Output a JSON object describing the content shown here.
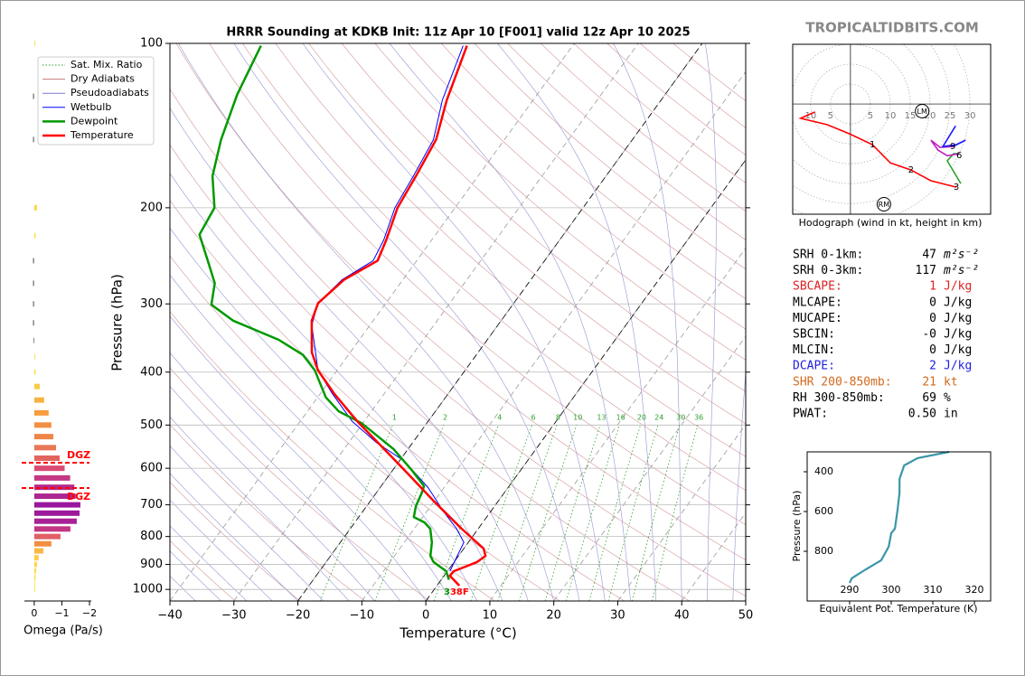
{
  "watermark": "TROPICALTIDBITS.COM",
  "chart_data": [
    {
      "type": "skewt",
      "title": "HRRR Sounding at KDKB Init: 11z Apr 10 [F001] valid 12z Apr 10 2025",
      "xlabel": "Temperature (°C)",
      "ylabel": "Pressure (hPa)",
      "xlim": [
        -40,
        50
      ],
      "ylim": [
        1050,
        100
      ],
      "log_y": true,
      "grid": true,
      "xticks": [
        {
          "value": -40,
          "label": "−40"
        },
        {
          "value": -30,
          "label": "−30"
        },
        {
          "value": -20,
          "label": "−20"
        },
        {
          "value": -10,
          "label": "−10"
        },
        0,
        10,
        20,
        30,
        40,
        50
      ],
      "yticks": [
        100,
        200,
        300,
        400,
        500,
        600,
        700,
        800,
        900,
        1000
      ],
      "highlight_isotherms": [
        0,
        -20
      ],
      "mixing_ratios": [
        1,
        2,
        4,
        6,
        8,
        10,
        13,
        16,
        20,
        24,
        30,
        36
      ],
      "background_lines": [
        {
          "name": "Sat. Mix. Ratio",
          "color": "#2ca02c"
        },
        {
          "name": "Dry Adiabats",
          "color": "#c97a7a"
        },
        {
          "name": "Pseudoadiabats",
          "color": "#7a7ac9"
        }
      ],
      "series": [
        {
          "name": "Wetbulb",
          "color": "#0000ff",
          "pressure": [
            926,
            868,
            820,
            774,
            717,
            652,
            609,
            582,
            539,
            492,
            439,
            397,
            328,
            299,
            271,
            250,
            229,
            200,
            175,
            150,
            127,
            101
          ],
          "values": [
            0.4,
            -0.2,
            -0.7,
            -3.4,
            -7.6,
            -12.4,
            -16.5,
            -19.2,
            -25.6,
            -31.9,
            -38.0,
            -43.0,
            -49.1,
            -50.6,
            -49.5,
            -46.8,
            -47.5,
            -49.4,
            -50.1,
            -51.1,
            -54.2,
            -57.1
          ]
        },
        {
          "name": "Dewpoint",
          "color": "#009900",
          "pressure": [
            960,
            926,
            891,
            868,
            820,
            774,
            754,
            737,
            704,
            665,
            647,
            604,
            553,
            496,
            472,
            445,
            397,
            372,
            349,
            322,
            301,
            275,
            251,
            224,
            200,
            175,
            150,
            124,
            101
          ],
          "values": [
            1.2,
            -0.2,
            -3.2,
            -4.4,
            -5.7,
            -7.5,
            -9.1,
            -11.4,
            -12.3,
            -12.9,
            -13.3,
            -17.1,
            -22.3,
            -30.2,
            -35.1,
            -38.7,
            -43.5,
            -47.1,
            -52.6,
            -61.9,
            -67.1,
            -69.0,
            -72.5,
            -76.9,
            -77.6,
            -81.5,
            -84.3,
            -86.9,
            -88.7
          ]
        },
        {
          "name": "Temperature",
          "color": "#ff0000",
          "pressure": [
            984,
            944,
            926,
            891,
            868,
            842,
            774,
            690,
            616,
            543,
            492,
            439,
            397,
            368,
            322,
            299,
            271,
            250,
            229,
            200,
            175,
            150,
            127,
            101
          ],
          "values": [
            3.5,
            0.9,
            1.0,
            3.6,
            4.2,
            3.1,
            -2.6,
            -10.0,
            -17.0,
            -24.9,
            -31.1,
            -37.7,
            -43.0,
            -46.0,
            -49.6,
            -50.6,
            -49.2,
            -46.1,
            -47.1,
            -49.0,
            -49.7,
            -50.7,
            -53.5,
            -56.5
          ]
        }
      ],
      "surface_labels": [
        {
          "text": "3",
          "color": "#009900"
        },
        {
          "text": "38F",
          "color": "#ff0000"
        }
      ]
    },
    {
      "type": "hbar",
      "xlabel": "Omega (Pa/s)",
      "xlim": [
        0.16,
        -2
      ],
      "xticks": [
        0,
        {
          "value": -1,
          "label": "−1"
        },
        {
          "value": -2,
          "label": "−2"
        }
      ],
      "pressure": [
        100,
        125,
        150,
        200,
        225,
        250,
        275,
        300,
        325,
        350,
        375,
        400,
        425,
        450,
        475,
        500,
        525,
        550,
        575,
        600,
        625,
        650,
        675,
        700,
        725,
        750,
        775,
        800,
        825,
        850,
        875,
        900,
        925,
        950,
        975,
        1000
      ],
      "values": [
        -0.03,
        0.05,
        0.05,
        -0.1,
        -0.05,
        0.05,
        0.05,
        0.05,
        0.05,
        0.03,
        -0.03,
        -0.05,
        -0.2,
        -0.36,
        -0.52,
        -0.62,
        -0.69,
        -0.79,
        -0.92,
        -1.1,
        -1.3,
        -1.45,
        -1.5,
        -1.67,
        -1.64,
        -1.54,
        -1.31,
        -0.95,
        -0.62,
        -0.33,
        -0.16,
        -0.1,
        -0.07,
        -0.05,
        -0.03,
        -0.02
      ],
      "dgz": [
        {
          "pressure": 586,
          "label": "DGZ"
        },
        {
          "pressure": 652,
          "label": "DGZ"
        }
      ]
    },
    {
      "type": "hodograph",
      "caption": "Hodograph (wind in kt, height in km)",
      "xlim": [
        -14.5,
        35.2
      ],
      "ylim": [
        -27.7,
        15
      ],
      "xticks": [
        {
          "value": -10,
          "label": "10"
        },
        {
          "value": -5,
          "label": "5"
        },
        5,
        10,
        15,
        20,
        25,
        30
      ],
      "segments": [
        {
          "color": "#ff0000",
          "u": [
            -8.9,
            -12.5,
            -5.9,
            -0.2,
            5.5,
            10.0,
            15.2,
            20.2,
            26.6
          ],
          "v": [
            -2.0,
            -3.6,
            -5.2,
            -7.5,
            -10.2,
            -14.8,
            -16.6,
            -19.3,
            -20.9
          ]
        },
        {
          "color": "#2ca02c",
          "u": [
            27.7,
            25.7,
            24.3,
            25.9,
            27.3
          ],
          "v": [
            -20.0,
            -16.6,
            -14.3,
            -12.5,
            -12.5
          ]
        },
        {
          "color": "#c020c0",
          "u": [
            27.3,
            24.3,
            22.0,
            20.2,
            22.5,
            25.7
          ],
          "v": [
            -12.5,
            -13.0,
            -11.6,
            -9.1,
            -10.9,
            -10.7
          ]
        },
        {
          "color": "#1a1aff",
          "u": [
            25.7,
            28.9,
            26.6,
            23.2,
            26.4
          ],
          "v": [
            -10.7,
            -9.1,
            -10.2,
            -10.7,
            -5.5
          ]
        }
      ],
      "height_labels": [
        {
          "km": 1,
          "u": 5.5,
          "v": -10.2
        },
        {
          "km": 2,
          "u": 15.2,
          "v": -16.6
        },
        {
          "km": 3,
          "u": 26.6,
          "v": -20.9
        },
        {
          "km": 6,
          "u": 27.3,
          "v": -12.9
        },
        {
          "km": 9,
          "u": 25.7,
          "v": -10.7
        }
      ],
      "motions": [
        {
          "label": "LM",
          "u": 18.0,
          "v": -1.8
        },
        {
          "label": "RM",
          "u": 8.4,
          "v": -25.2
        }
      ]
    },
    {
      "type": "line",
      "xlabel": "Equivalent Pot. Temperature (K)",
      "ylabel": "Pressure (hPa)",
      "xlim": [
        279.8,
        323.9
      ],
      "ylim": [
        1050,
        300
      ],
      "xticks": [
        290,
        300,
        310,
        320
      ],
      "yticks": [
        400,
        600,
        800
      ],
      "color": "#3a96a8",
      "pressure": [
        959,
        936,
        891,
        845,
        777,
        709,
        686,
        595,
        505,
        436,
        368,
        332,
        300
      ],
      "values": [
        290.0,
        290.5,
        293.9,
        297.6,
        299.4,
        300.0,
        300.9,
        301.5,
        302.0,
        302.0,
        303.1,
        306.3,
        313.9
      ]
    }
  ],
  "indices": [
    {
      "label": "SRH 0-1km:",
      "value": "47",
      "unit": "m²s⁻²",
      "color": "#000000"
    },
    {
      "label": "SRH 0-3km:",
      "value": "117",
      "unit": "m²s⁻²",
      "color": "#000000"
    },
    {
      "label": "SBCAPE:",
      "value": "1",
      "unit": "J/kg",
      "color": "#e02020"
    },
    {
      "label": "MLCAPE:",
      "value": "0",
      "unit": "J/kg",
      "color": "#000000"
    },
    {
      "label": "MUCAPE:",
      "value": "0",
      "unit": "J/kg",
      "color": "#000000"
    },
    {
      "label": "SBCIN:",
      "value": "-0",
      "unit": "J/kg",
      "color": "#000000"
    },
    {
      "label": "MLCIN:",
      "value": "0",
      "unit": "J/kg",
      "color": "#000000"
    },
    {
      "label": "DCAPE:",
      "value": "2",
      "unit": "J/kg",
      "color": "#2020e0"
    },
    {
      "label": "SHR 200-850mb:",
      "value": "21",
      "unit": "kt",
      "color": "#d2691e"
    },
    {
      "label": "RH 300-850mb:",
      "value": "69",
      "unit": "%",
      "color": "#000000"
    },
    {
      "label": "PWAT:",
      "value": "0.50",
      "unit": "in",
      "color": "#000000"
    }
  ]
}
